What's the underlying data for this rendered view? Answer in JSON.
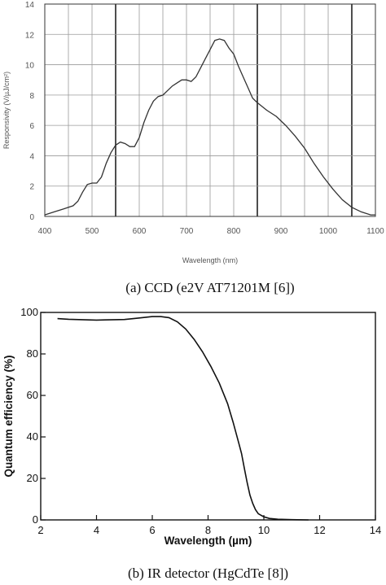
{
  "chart_data": [
    {
      "type": "line",
      "caption": "(a) CCD (e2V AT71201M [6])",
      "xlabel": "Wavelength (nm)",
      "ylabel": "Responsivity (V/µJ/cm²)",
      "xlim": [
        400,
        1100
      ],
      "ylim": [
        0,
        14
      ],
      "xticks": [
        400,
        500,
        600,
        700,
        800,
        900,
        1000,
        1100
      ],
      "yticks": [
        0,
        2,
        4,
        6,
        8,
        10,
        12,
        14
      ],
      "grid": true,
      "grid_x_step": 50,
      "emphasized_vlines": [
        550,
        850,
        1050
      ],
      "series": [
        {
          "x": [
            400,
            420,
            440,
            460,
            470,
            480,
            490,
            500,
            510,
            520,
            530,
            540,
            550,
            560,
            570,
            580,
            590,
            600,
            610,
            620,
            630,
            640,
            650,
            660,
            670,
            680,
            690,
            700,
            710,
            720,
            730,
            740,
            750,
            760,
            770,
            780,
            790,
            800,
            810,
            820,
            830,
            840,
            850,
            870,
            890,
            910,
            930,
            950,
            970,
            990,
            1010,
            1030,
            1050,
            1070,
            1090,
            1100
          ],
          "y": [
            0.1,
            0.3,
            0.5,
            0.7,
            1.0,
            1.6,
            2.1,
            2.2,
            2.2,
            2.6,
            3.5,
            4.2,
            4.7,
            4.9,
            4.8,
            4.6,
            4.6,
            5.2,
            6.2,
            7.0,
            7.6,
            7.9,
            8.0,
            8.3,
            8.6,
            8.8,
            9.0,
            9.0,
            8.9,
            9.2,
            9.8,
            10.4,
            11.0,
            11.6,
            11.7,
            11.6,
            11.1,
            10.7,
            9.9,
            9.2,
            8.5,
            7.8,
            7.5,
            7.0,
            6.6,
            6.0,
            5.3,
            4.5,
            3.5,
            2.6,
            1.8,
            1.1,
            0.6,
            0.3,
            0.1,
            0.1
          ]
        }
      ]
    },
    {
      "type": "line",
      "caption": "(b) IR detector (HgCdTe [8])",
      "xlabel": "Wavelength (µm)",
      "ylabel": "Quantum efficiency (%)",
      "xlim": [
        2,
        14
      ],
      "ylim": [
        0,
        100
      ],
      "xticks": [
        2,
        4,
        6,
        8,
        10,
        12,
        14
      ],
      "yticks": [
        0,
        20,
        40,
        60,
        80,
        100
      ],
      "grid": false,
      "series": [
        {
          "x": [
            2.6,
            3.0,
            4.0,
            5.0,
            5.5,
            6.0,
            6.3,
            6.6,
            6.9,
            7.2,
            7.5,
            7.8,
            8.1,
            8.4,
            8.7,
            8.9,
            9.1,
            9.2,
            9.3,
            9.4,
            9.5,
            9.6,
            9.7,
            9.8,
            10.0,
            10.2,
            10.5,
            11.0,
            11.6
          ],
          "y": [
            97,
            96.7,
            96.3,
            96.6,
            97.3,
            98,
            98,
            97.5,
            95.5,
            92,
            87,
            81,
            74,
            66,
            56,
            47,
            37,
            32,
            25,
            18,
            12,
            8,
            5,
            3,
            1.5,
            0.7,
            0.3,
            0.1,
            0
          ]
        }
      ]
    }
  ]
}
